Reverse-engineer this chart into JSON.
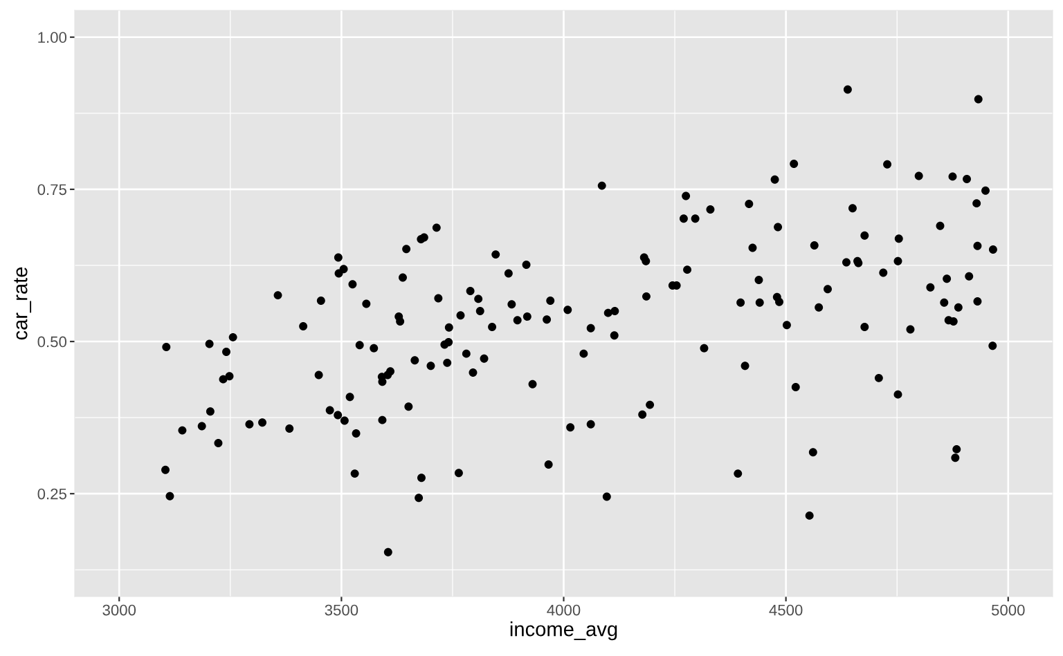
{
  "chart_data": {
    "type": "scatter",
    "xlabel": "income_avg",
    "ylabel": "car_rate",
    "xlim": [
      2900,
      5100
    ],
    "ylim": [
      0.081,
      1.044
    ],
    "xticks": [
      3000,
      {
        "value": 3250,
        "label": null
      },
      3500,
      {
        "value": 3750,
        "label": null
      },
      4000,
      {
        "value": 4250,
        "label": null
      },
      4500,
      {
        "value": 4750,
        "label": null
      },
      5000
    ],
    "yticks": [
      {
        "value": 0.125,
        "label": null
      },
      0.25,
      {
        "value": 0.375,
        "label": null
      },
      {
        "value": 0.5,
        "label": "0.50"
      },
      {
        "value": 0.625,
        "label": null
      },
      0.75,
      {
        "value": 0.875,
        "label": null
      },
      {
        "value": 1.0,
        "label": "1.00"
      }
    ],
    "grid": true,
    "marker": "circle",
    "series": [
      {
        "color": "#000000",
        "x": [
          3104,
          3106,
          3114,
          3142,
          3186,
          3203,
          3205,
          3223,
          3234,
          3241,
          3248,
          3256,
          3293,
          3322,
          3357,
          3383,
          3414,
          3449,
          3454,
          3474,
          3492,
          3493,
          3494,
          3505,
          3507,
          3519,
          3525,
          3530,
          3533,
          3541,
          3556,
          3573,
          3591,
          3592,
          3592,
          3604,
          3605,
          3610,
          3629,
          3632,
          3638,
          3646,
          3651,
          3665,
          3674,
          3679,
          3680,
          3686,
          3701,
          3714,
          3718,
          3732,
          3738,
          3741,
          3742,
          3764,
          3768,
          3781,
          3790,
          3796,
          3808,
          3812,
          3821,
          3839,
          3847,
          3876,
          3883,
          3896,
          3916,
          3918,
          3930,
          3962,
          3966,
          3970,
          4009,
          4015,
          4045,
          4061,
          4061,
          4086,
          4097,
          4100,
          4114,
          4115,
          4177,
          4181,
          4185,
          4186,
          4194,
          4245,
          4254,
          4270,
          4275,
          4278,
          4296,
          4316,
          4330,
          4392,
          4398,
          4408,
          4417,
          4425,
          4439,
          4441,
          4475,
          4480,
          4482,
          4485,
          4502,
          4518,
          4522,
          4553,
          4561,
          4564,
          4574,
          4594,
          4636,
          4639,
          4650,
          4661,
          4663,
          4677,
          4677,
          4709,
          4719,
          4728,
          4752,
          4752,
          4754,
          4780,
          4799,
          4825,
          4847,
          4856,
          4862,
          4866,
          4875,
          4877,
          4881,
          4884,
          4888,
          4907,
          4912,
          4929,
          4931,
          4931,
          4933,
          4949,
          4965,
          4966
        ],
        "values": [
          0.289,
          0.491,
          0.246,
          0.354,
          0.361,
          0.496,
          0.385,
          0.333,
          0.438,
          0.483,
          0.443,
          0.507,
          0.364,
          0.367,
          0.576,
          0.357,
          0.525,
          0.445,
          0.567,
          0.387,
          0.379,
          0.638,
          0.612,
          0.619,
          0.37,
          0.409,
          0.594,
          0.283,
          0.349,
          0.494,
          0.562,
          0.489,
          0.442,
          0.434,
          0.371,
          0.445,
          0.154,
          0.451,
          0.541,
          0.533,
          0.605,
          0.652,
          0.393,
          0.469,
          0.243,
          0.668,
          0.276,
          0.671,
          0.46,
          0.687,
          0.571,
          0.495,
          0.465,
          0.499,
          0.523,
          0.284,
          0.543,
          0.48,
          0.583,
          0.449,
          0.57,
          0.55,
          0.472,
          0.524,
          0.643,
          0.612,
          0.561,
          0.535,
          0.626,
          0.541,
          0.43,
          0.536,
          0.298,
          0.567,
          0.552,
          0.359,
          0.48,
          0.522,
          0.364,
          0.756,
          0.245,
          0.547,
          0.51,
          0.55,
          0.38,
          0.638,
          0.632,
          0.574,
          0.396,
          0.592,
          0.592,
          0.702,
          0.739,
          0.618,
          0.702,
          0.489,
          0.717,
          0.283,
          0.564,
          0.46,
          0.726,
          0.654,
          0.601,
          0.564,
          0.766,
          0.573,
          0.688,
          0.565,
          0.527,
          0.792,
          0.425,
          0.214,
          0.318,
          0.658,
          0.556,
          0.586,
          0.63,
          0.914,
          0.719,
          0.632,
          0.629,
          0.674,
          0.524,
          0.44,
          0.613,
          0.791,
          0.632,
          0.413,
          0.669,
          0.52,
          0.772,
          0.589,
          0.69,
          0.564,
          0.603,
          0.535,
          0.771,
          0.533,
          0.309,
          0.323,
          0.556,
          0.767,
          0.607,
          0.727,
          0.657,
          0.566,
          0.898,
          0.748,
          0.493,
          0.651
        ]
      }
    ]
  }
}
